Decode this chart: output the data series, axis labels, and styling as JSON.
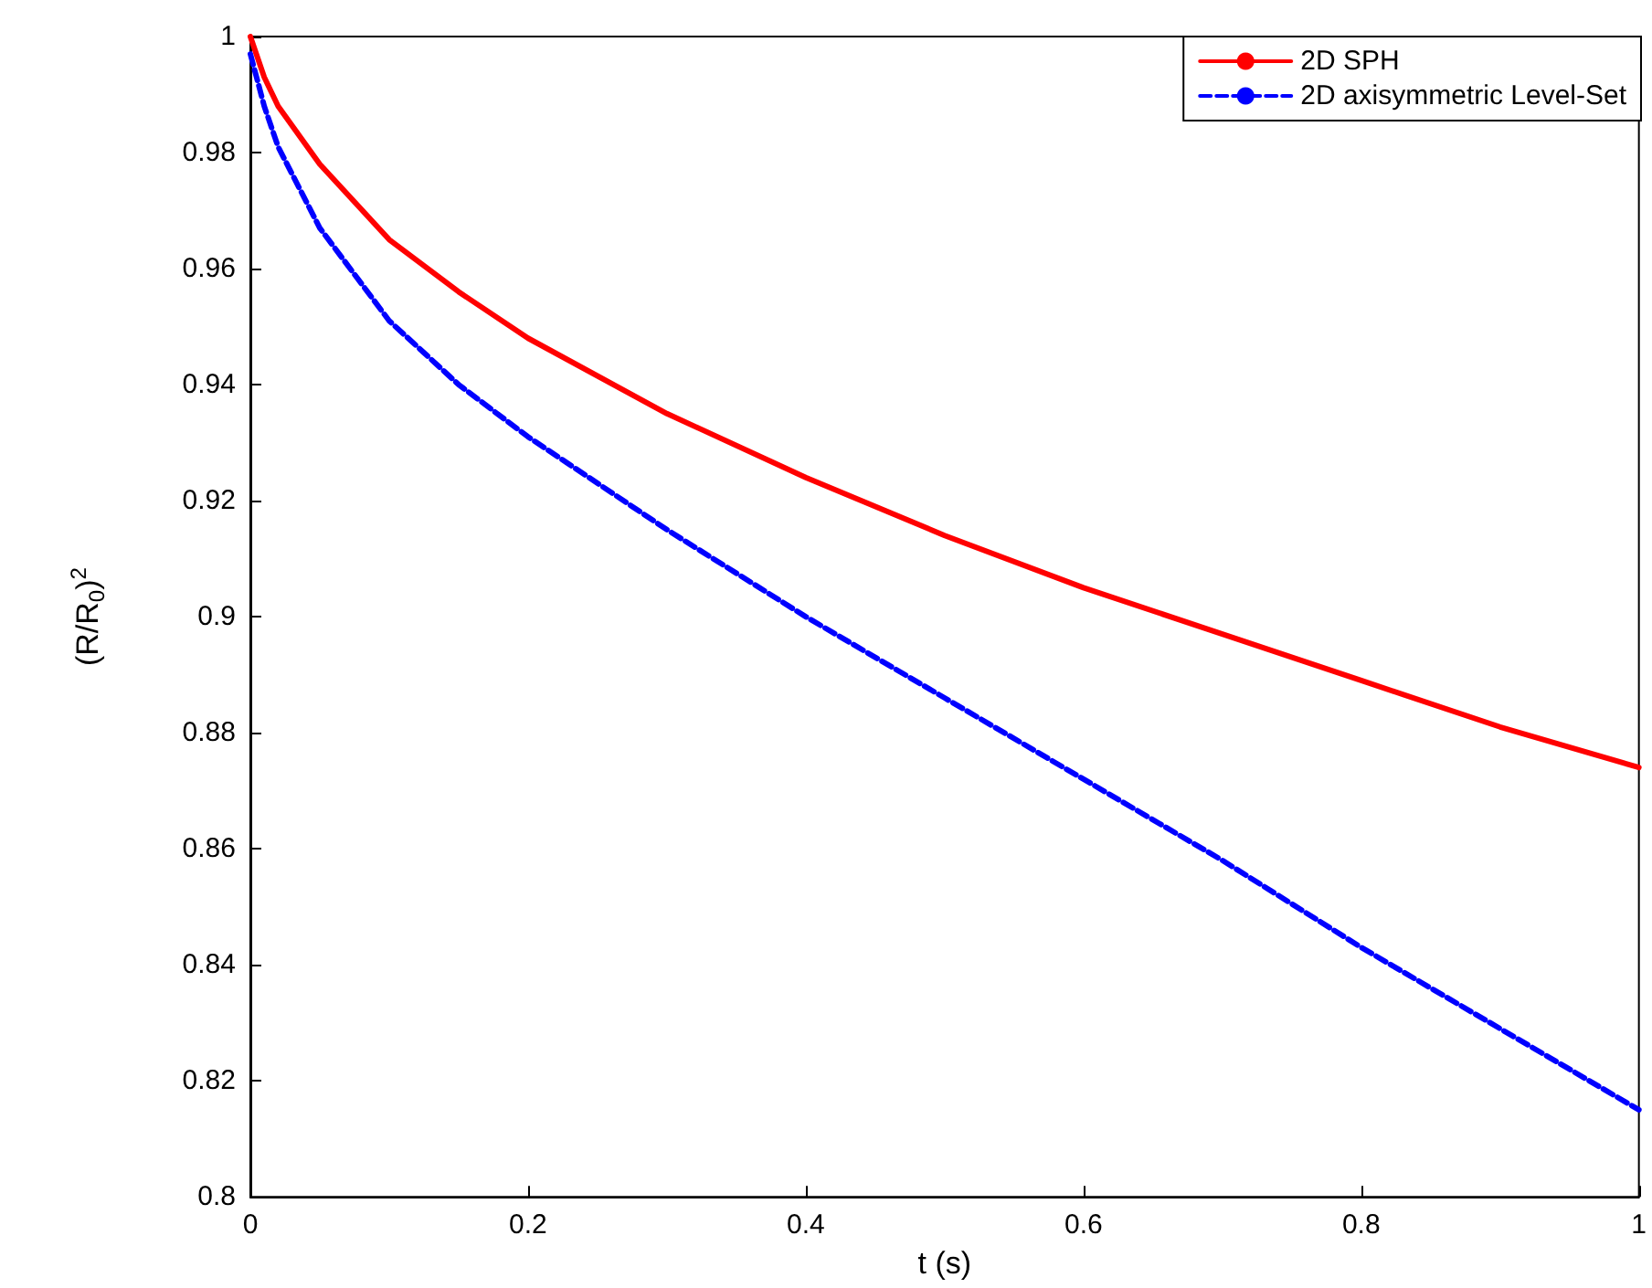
{
  "chart_data": {
    "type": "line",
    "xlabel": "t (s)",
    "ylabel": "(R/R$_{0}$)$^{2}$",
    "xlim": [
      0,
      1
    ],
    "xticks": [
      0,
      0.2,
      0.4,
      0.6,
      0.8,
      1
    ],
    "ylim": [
      0.8,
      1
    ],
    "yticks": [
      0.8,
      0.82,
      0.84,
      0.86,
      0.88,
      0.9,
      0.92,
      0.94,
      0.96,
      0.98,
      1
    ],
    "grid": false,
    "legend": "top right",
    "marker": "none",
    "x": [
      0,
      0.01,
      0.02,
      0.05,
      0.1,
      0.15,
      0.2,
      0.3,
      0.4,
      0.5,
      0.6,
      0.7,
      0.8,
      0.9,
      1
    ],
    "series": [
      {
        "name": "2D SPH",
        "color": "#ff0000",
        "line_style": "solid",
        "values": [
          1.0,
          0.993,
          0.988,
          0.978,
          0.965,
          0.956,
          0.948,
          0.935,
          0.924,
          0.914,
          0.905,
          0.897,
          0.889,
          0.881,
          0.874
        ]
      },
      {
        "name": "2D axisymmetric Level-Set",
        "color": "#0000ff",
        "line_style": "dashed",
        "values": [
          0.997,
          0.988,
          0.981,
          0.967,
          0.951,
          0.94,
          0.931,
          0.915,
          0.9,
          0.886,
          0.872,
          0.858,
          0.843,
          0.829,
          0.815
        ]
      }
    ]
  }
}
